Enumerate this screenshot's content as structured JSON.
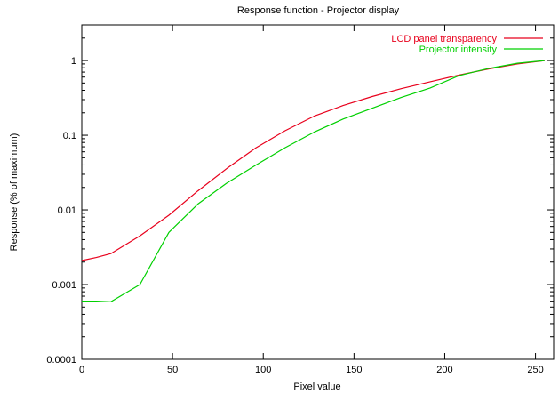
{
  "chart_data": {
    "type": "line",
    "title": "Response function - Projector display",
    "xlabel": "Pixel value",
    "ylabel": "Response (% of maximum)",
    "xlim": [
      0,
      260
    ],
    "ylim": [
      0.0001,
      3
    ],
    "yscale": "log",
    "grid": false,
    "legend_position": "top-right",
    "x_ticks": [
      {
        "value": 0,
        "label": "0"
      },
      {
        "value": 50,
        "label": "50"
      },
      {
        "value": 100,
        "label": "100"
      },
      {
        "value": 150,
        "label": "150"
      },
      {
        "value": 200,
        "label": "200"
      },
      {
        "value": 250,
        "label": "250"
      }
    ],
    "y_ticks": [
      {
        "value": 0.0001,
        "label": "0.0001"
      },
      {
        "value": 0.001,
        "label": "0.001"
      },
      {
        "value": 0.01,
        "label": "0.01"
      },
      {
        "value": 0.1,
        "label": "0.1"
      },
      {
        "value": 1,
        "label": "1"
      }
    ],
    "series": [
      {
        "name": "LCD panel transparency",
        "color": "#e8001c",
        "x": [
          0,
          8,
          16,
          32,
          48,
          64,
          80,
          96,
          112,
          128,
          144,
          160,
          176,
          192,
          208,
          224,
          240,
          255
        ],
        "y": [
          0.0021,
          0.0023,
          0.0026,
          0.0045,
          0.0085,
          0.018,
          0.036,
          0.068,
          0.115,
          0.18,
          0.25,
          0.33,
          0.42,
          0.52,
          0.64,
          0.77,
          0.9,
          1.0
        ]
      },
      {
        "name": "Projector intensity",
        "color": "#00d000",
        "x": [
          0,
          8,
          16,
          32,
          48,
          64,
          80,
          96,
          112,
          128,
          144,
          160,
          176,
          192,
          208,
          224,
          240,
          255
        ],
        "y": [
          0.0006,
          0.0006,
          0.00059,
          0.001,
          0.005,
          0.012,
          0.023,
          0.04,
          0.068,
          0.11,
          0.165,
          0.23,
          0.32,
          0.43,
          0.63,
          0.78,
          0.92,
          1.0
        ]
      }
    ]
  }
}
